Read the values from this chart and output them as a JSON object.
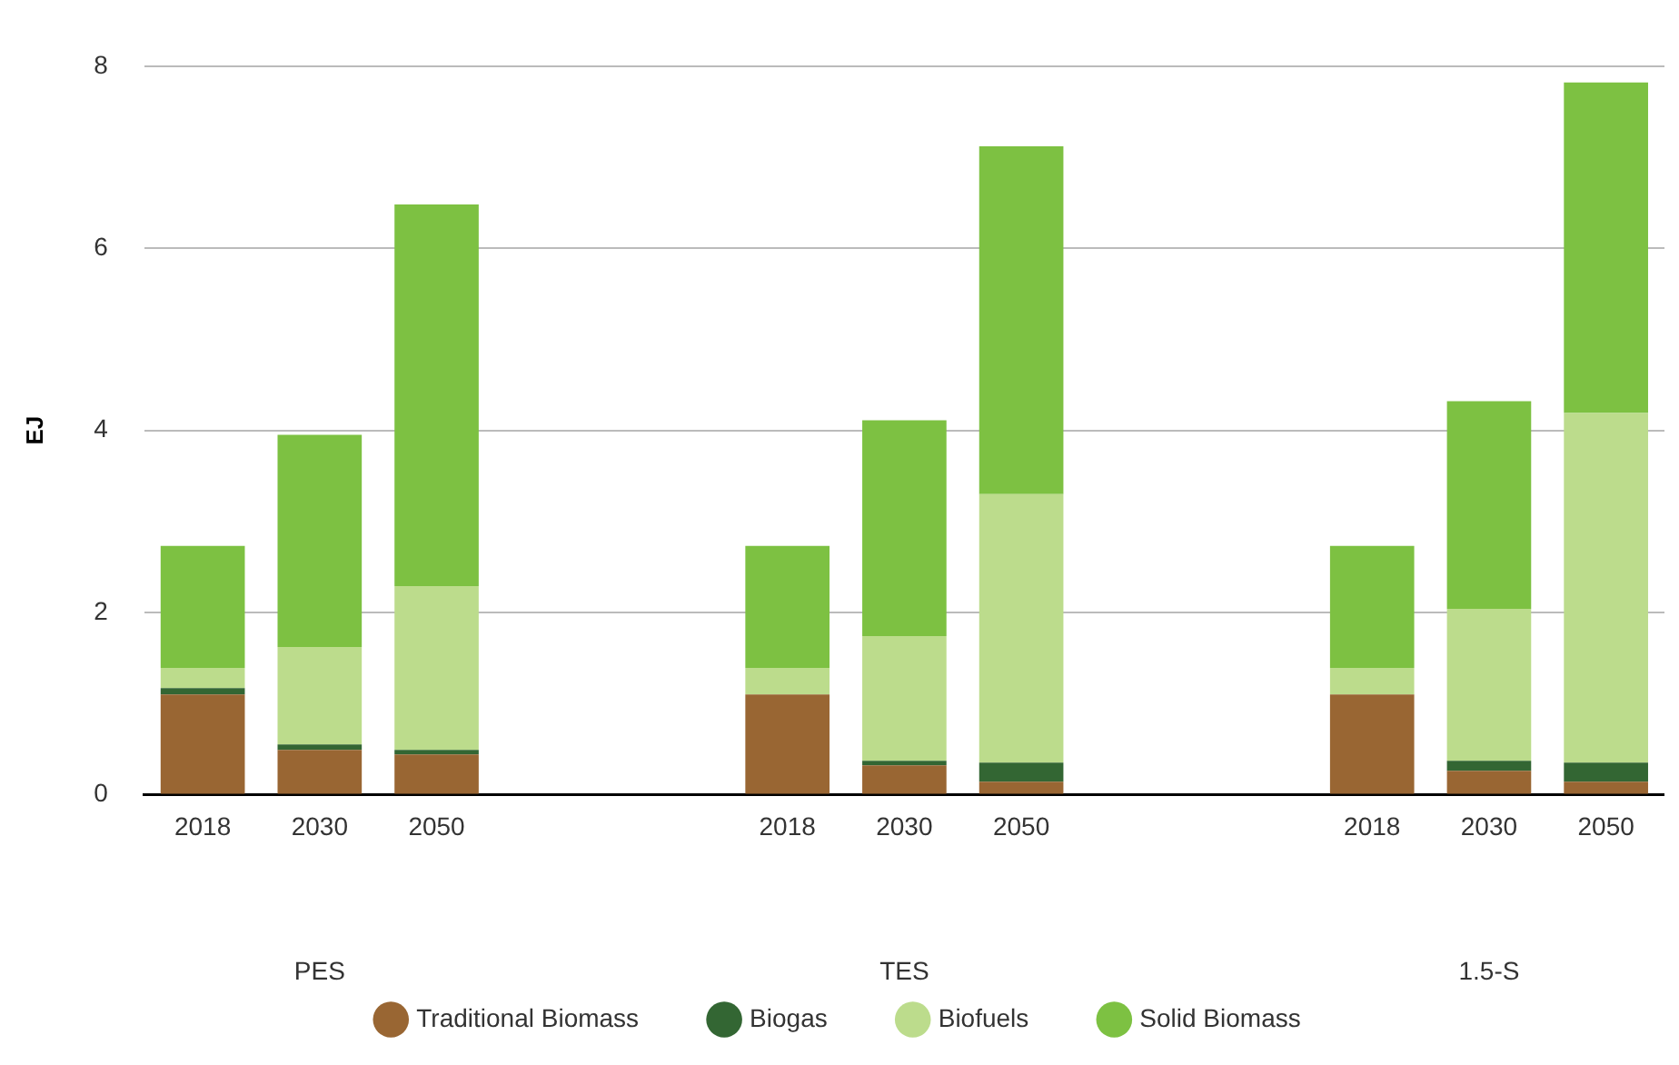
{
  "chart_data": {
    "type": "bar",
    "stacked": true,
    "ylabel": "EJ",
    "categories": [
      "2018",
      "2030",
      "2050",
      null,
      null,
      "2018",
      "2030",
      "2050",
      null,
      null,
      "2018",
      "2030",
      "2050"
    ],
    "series": [
      {
        "name": "Traditional Biomass",
        "color": "#996633",
        "values": [
          1.1,
          0.49,
          0.44,
          null,
          null,
          1.1,
          0.32,
          0.14,
          null,
          null,
          1.1,
          0.26,
          0.14
        ]
      },
      {
        "name": "Biogas",
        "color": "#336633",
        "values": [
          0.07,
          0.06,
          0.05,
          null,
          null,
          0,
          0.05,
          0.21,
          null,
          null,
          0,
          0.11,
          0.21
        ]
      },
      {
        "name": "Biofuels",
        "color": "#bcdc8c",
        "values": [
          0.22,
          1.07,
          1.8,
          null,
          null,
          0.29,
          1.37,
          2.95,
          null,
          null,
          0.29,
          1.67,
          3.84
        ]
      },
      {
        "name": "Solid Biomass",
        "color": "#7dc142",
        "values": [
          1.34,
          2.33,
          4.19,
          null,
          null,
          1.34,
          2.37,
          3.82,
          null,
          null,
          1.34,
          2.28,
          3.63
        ]
      }
    ],
    "annotations": [
      "PES",
      "TES",
      "1.5-S"
    ],
    "ylim": [
      0,
      8
    ],
    "yticks": [
      0,
      2,
      4,
      6,
      8
    ],
    "grid": "y",
    "legend": "bottom"
  }
}
